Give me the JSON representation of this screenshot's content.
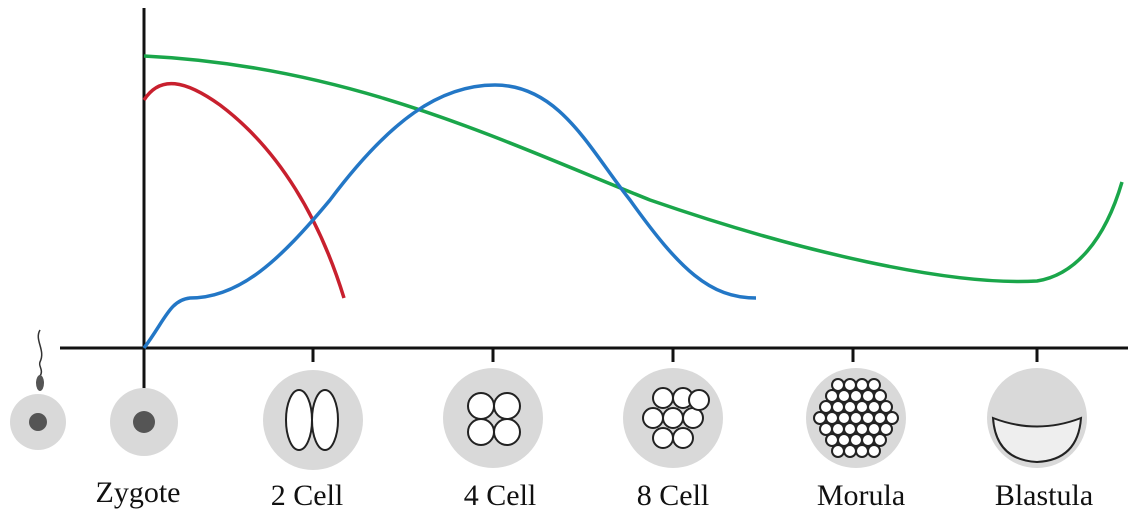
{
  "stages": [
    {
      "label": "Zygote"
    },
    {
      "label": "2 Cell"
    },
    {
      "label": "4 Cell"
    },
    {
      "label": "8 Cell"
    },
    {
      "label": "Morula"
    },
    {
      "label": "Blastula"
    }
  ]
}
